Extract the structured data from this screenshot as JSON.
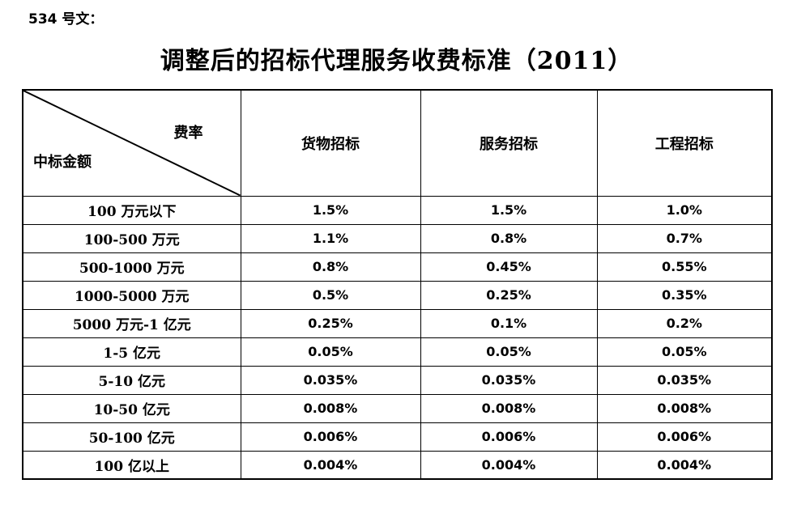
{
  "doc_number": "534 号文：",
  "title": "调整后的招标代理服务收费标准（2011）",
  "table": {
    "corner": {
      "top_right": "费率",
      "bottom_left": "中标金额"
    },
    "columns": [
      "货物招标",
      "服务招标",
      "工程招标"
    ],
    "rows": [
      {
        "label": "100 万元以下",
        "values": [
          "1.5%",
          "1.5%",
          "1.0%"
        ]
      },
      {
        "label": "100-500 万元",
        "values": [
          "1.1%",
          "0.8%",
          "0.7%"
        ]
      },
      {
        "label": "500-1000 万元",
        "values": [
          "0.8%",
          "0.45%",
          "0.55%"
        ]
      },
      {
        "label": "1000-5000 万元",
        "values": [
          "0.5%",
          "0.25%",
          "0.35%"
        ]
      },
      {
        "label": "5000 万元-1 亿元",
        "values": [
          "0.25%",
          "0.1%",
          "0.2%"
        ]
      },
      {
        "label": "1-5 亿元",
        "values": [
          "0.05%",
          "0.05%",
          "0.05%"
        ]
      },
      {
        "label": "5-10 亿元",
        "values": [
          "0.035%",
          "0.035%",
          "0.035%"
        ]
      },
      {
        "label": "10-50 亿元",
        "values": [
          "0.008%",
          "0.008%",
          "0.008%"
        ]
      },
      {
        "label": "50-100 亿元",
        "values": [
          "0.006%",
          "0.006%",
          "0.006%"
        ]
      },
      {
        "label": "100 亿以上",
        "values": [
          "0.004%",
          "0.004%",
          "0.004%"
        ]
      }
    ],
    "colors": {
      "border": "#000000",
      "text": "#000000",
      "background": "#ffffff"
    }
  }
}
